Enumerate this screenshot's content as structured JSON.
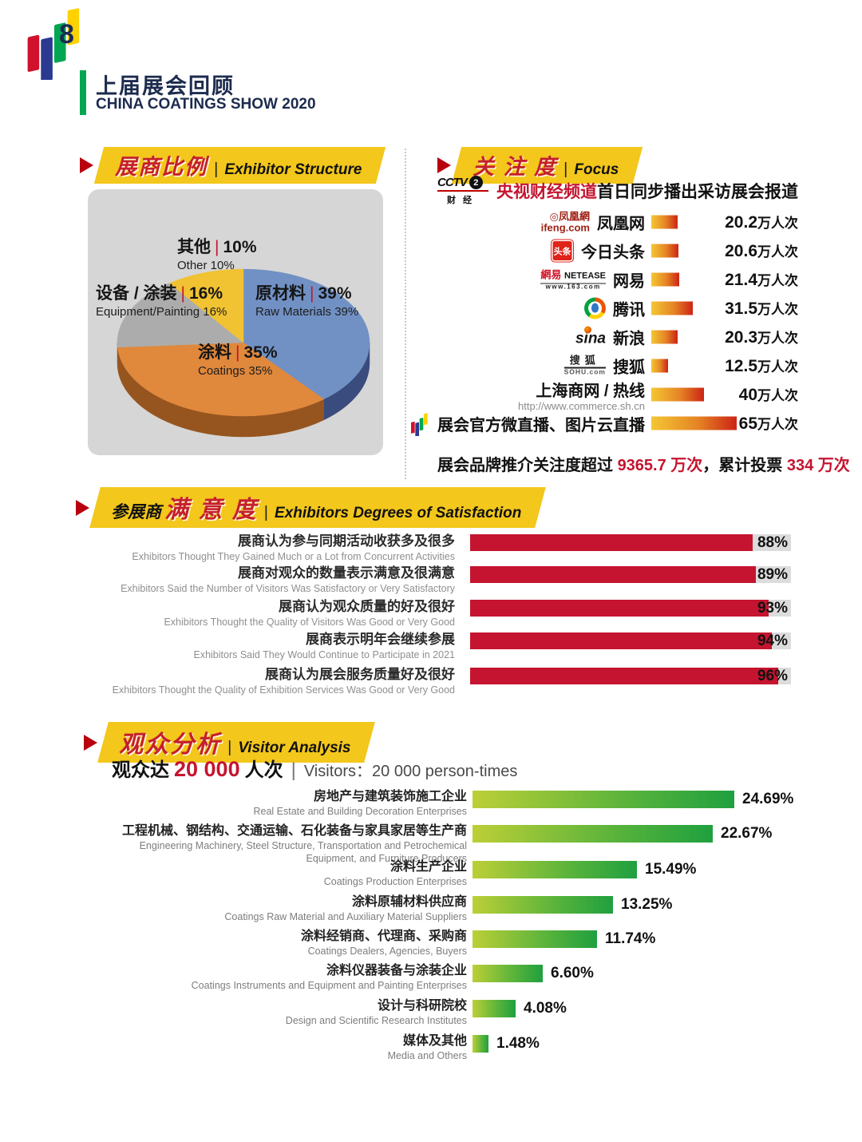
{
  "page": {
    "number": "8",
    "title_cn": "上届展会回顾",
    "title_en": "CHINA COATINGS SHOW 2020"
  },
  "colors": {
    "banner_yellow": "#F3C71B",
    "banner_text_red": "#C5202C",
    "accent_green": "#00A651",
    "satisfaction_red": "#C5142F",
    "track_gray": "#DCDCDC",
    "focus_bar_from": "#F4C733",
    "focus_bar_to": "#CC2414",
    "visitor_bar_from": "#BCCF37",
    "visitor_bar_to": "#1FA03F",
    "pie_blue": "#7191C5",
    "pie_orange": "#E0883C",
    "pie_gray": "#ACACAC",
    "pie_yellow": "#F1C232",
    "pie_blue_dark": "#3A4B7E",
    "pie_orange_dark": "#96551F",
    "panel_gray": "#D6D6D6"
  },
  "exhibitor_section": {
    "banner_cn": "展商比例",
    "banner_sep": "|",
    "banner_en": "Exhibitor Structure"
  },
  "focus_section": {
    "banner_cn": "关 注 度",
    "banner_sep": "|",
    "banner_en": "Focus",
    "cctv_logo": {
      "line1": "CCTV",
      "channel": "2",
      "line2": "财经"
    },
    "cctv_text_red": "央视财经频道",
    "cctv_text_black": "首日同步播出采访展会报道",
    "summary": {
      "part1": "展会品牌推介关注度超过 ",
      "num1": "9365.7 万次",
      "part2": "，累计投票 ",
      "num2": "334 万次"
    }
  },
  "satisfaction_section": {
    "banner_black": "参展商",
    "banner_red": "满 意 度",
    "banner_sep": "|",
    "banner_en": "Exhibitors Degrees of Satisfaction"
  },
  "visitor_section": {
    "banner_cn": "观众分析",
    "banner_sep": "|",
    "banner_en": "Visitor Analysis",
    "headline": {
      "prefix": "观众达",
      "number": "20 000",
      "suffix": "人次",
      "sep": "|",
      "en": "Visitors：20 000 person-times"
    }
  },
  "logos": {
    "ifeng": {
      "l1": "◎凤凰網",
      "l2": "ifeng.com"
    },
    "toutiao": "头条",
    "netease": {
      "cn": "網易 ",
      "en": "NETEASE",
      "url": "www.163.com"
    },
    "sina": "sina",
    "sohu": {
      "l1": "搜狐",
      "l2": "SOHU.com"
    }
  },
  "chart_data": [
    {
      "id": "exhibitor_pie",
      "type": "pie",
      "title": "展商比例 Exhibitor Structure",
      "slices": [
        {
          "label_cn": "原材料",
          "label_en": "Raw Materials",
          "value": 39,
          "color": "#7191C5"
        },
        {
          "label_cn": "涂料",
          "label_en": "Coatings",
          "value": 35,
          "color": "#E0883C"
        },
        {
          "label_cn": "设备 / 涂装",
          "label_en": "Equipment/Painting",
          "value": 16,
          "color": "#ACACAC"
        },
        {
          "label_cn": "其他",
          "label_en": "Other",
          "value": 10,
          "color": "#F1C232"
        }
      ]
    },
    {
      "id": "focus_media",
      "type": "bar",
      "unit": "万人次",
      "xlim": [
        0,
        65
      ],
      "rows": [
        {
          "name": "凤凰网",
          "logo": "ifeng",
          "value": 20.2,
          "display": "20.2"
        },
        {
          "name": "今日头条",
          "logo": "toutiao",
          "value": 20.6,
          "display": "20.6"
        },
        {
          "name": "网易",
          "logo": "netease",
          "value": 21.4,
          "display": "21.4"
        },
        {
          "name": "腾讯",
          "logo": "tencent",
          "value": 31.5,
          "display": "31.5"
        },
        {
          "name": "新浪",
          "logo": "sina",
          "value": 20.3,
          "display": "20.3"
        },
        {
          "name": "搜狐",
          "logo": "sohu",
          "value": 12.5,
          "display": "12.5"
        },
        {
          "name": "上海商网 / 热线",
          "sub": "http://www.commerce.sh.cn",
          "value": 40,
          "display": "40"
        },
        {
          "name": "展会官方微直播、图片云直播",
          "logo": "ribbon",
          "value": 65,
          "display": "65"
        }
      ]
    },
    {
      "id": "satisfaction",
      "type": "bar",
      "unit": "%",
      "xlim": [
        0,
        100
      ],
      "rows": [
        {
          "label_cn": "展商认为参与同期活动收获多及很多",
          "label_en": "Exhibitors Thought They Gained Much or a Lot from Concurrent Activities",
          "value": 88,
          "display": "88%"
        },
        {
          "label_cn": "展商对观众的数量表示满意及很满意",
          "label_en": "Exhibitors Said the Number of Visitors Was Satisfactory or Very Satisfactory",
          "value": 89,
          "display": "89%"
        },
        {
          "label_cn": "展商认为观众质量的好及很好",
          "label_en": "Exhibitors Thought the Quality of Visitors Was Good or Very Good",
          "value": 93,
          "display": "93%"
        },
        {
          "label_cn": "展商表示明年会继续参展",
          "label_en": "Exhibitors Said They Would Continue to Participate in 2021",
          "value": 94,
          "display": "94%"
        },
        {
          "label_cn": "展商认为展会服务质量好及很好",
          "label_en": "Exhibitors Thought the Quality of Exhibition Services Was Good or Very Good",
          "value": 96,
          "display": "96%"
        }
      ]
    },
    {
      "id": "visitor_analysis",
      "type": "bar",
      "unit": "%",
      "xlim": [
        0,
        25
      ],
      "rows": [
        {
          "label_cn": "房地产与建筑装饰施工企业",
          "label_en": "Real Estate and Building Decoration Enterprises",
          "value": 24.69,
          "display": "24.69%"
        },
        {
          "label_cn": "工程机械、钢结构、交通运输、石化装备与家具家居等生产商",
          "label_en": "Engineering Machinery, Steel Structure, Transportation and Petrochemical Equipment, and Furniture Producers",
          "value": 22.67,
          "display": "22.67%"
        },
        {
          "label_cn": "涂料生产企业",
          "label_en": "Coatings Production Enterprises",
          "value": 15.49,
          "display": "15.49%"
        },
        {
          "label_cn": "涂料原辅材料供应商",
          "label_en": "Coatings Raw Material and Auxiliary Material Suppliers",
          "value": 13.25,
          "display": "13.25%"
        },
        {
          "label_cn": "涂料经销商、代理商、采购商",
          "label_en": "Coatings Dealers, Agencies, Buyers",
          "value": 11.74,
          "display": "11.74%"
        },
        {
          "label_cn": "涂料仪器装备与涂装企业",
          "label_en": "Coatings Instruments and Equipment and Painting Enterprises",
          "value": 6.6,
          "display": "6.60%"
        },
        {
          "label_cn": "设计与科研院校",
          "label_en": "Design and Scientific Research Institutes",
          "value": 4.08,
          "display": "4.08%"
        },
        {
          "label_cn": "媒体及其他",
          "label_en": "Media and Others",
          "value": 1.48,
          "display": "1.48%"
        }
      ]
    }
  ]
}
